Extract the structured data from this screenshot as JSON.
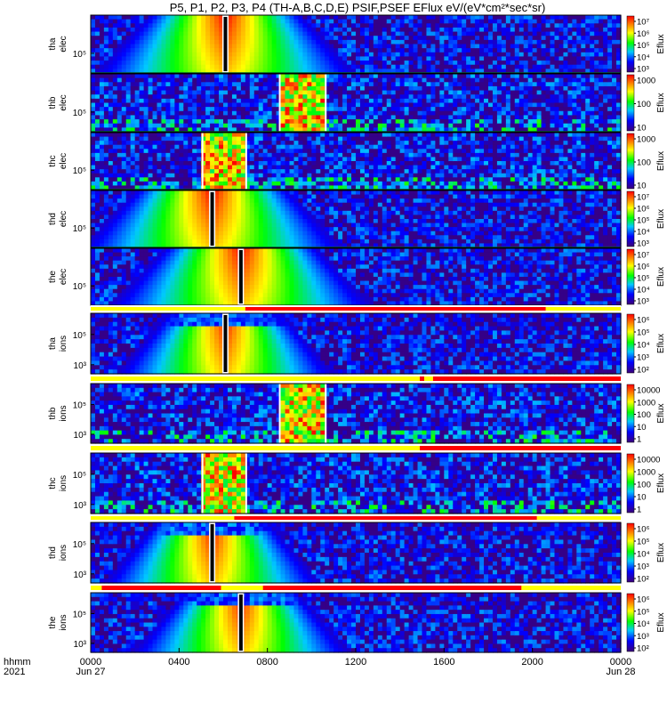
{
  "title": "P5, P1, P2, P3, P4 (TH-A,B,C,D,E) PSIF,PSEF EFlux eV/(eV*cm²*sec*sr)",
  "chart_data": {
    "type": "heatmap",
    "title": "P5, P1, P2, P3, P4 (TH-A,B,C,D,E) PSIF,PSEF EFlux eV/(eV*cm²*sec*sr)",
    "x_axis": {
      "row_label_1": "hhmm",
      "row_label_2": "2021",
      "ticks": [
        "0000",
        "0400",
        "0800",
        "1200",
        "1600",
        "2000",
        "0000"
      ],
      "tick_hours": [
        0,
        4,
        8,
        12,
        16,
        20,
        24
      ],
      "date_labels": [
        {
          "label": "Jun 27",
          "hour": 0
        },
        {
          "label": "Jun 28",
          "hour": 24
        }
      ],
      "range_hours": [
        0,
        24
      ]
    },
    "colorbar_label": "Eflux",
    "panels": [
      {
        "label_1": "tha",
        "label_2": "elec",
        "ytick": "10⁵",
        "cbar_ticks": [
          "10³",
          "10⁴",
          "10⁵",
          "10⁶",
          "10⁷"
        ],
        "style": "electron",
        "gap_hour": 6.1
      },
      {
        "label_1": "thb",
        "label_2": "elec",
        "ytick": "10⁵",
        "cbar_ticks": [
          "10",
          "100",
          "1000"
        ],
        "style": "noisy",
        "block_hours": [
          8.6,
          10.6
        ]
      },
      {
        "label_1": "thc",
        "label_2": "elec",
        "ytick": "10⁵",
        "cbar_ticks": [
          "10",
          "100",
          "1000"
        ],
        "style": "noisy",
        "block_hours": [
          5.1,
          7.0
        ]
      },
      {
        "label_1": "thd",
        "label_2": "elec",
        "ytick": "10⁵",
        "cbar_ticks": [
          "10³",
          "10⁴",
          "10⁵",
          "10⁶",
          "10⁷"
        ],
        "style": "electron",
        "gap_hour": 5.5
      },
      {
        "label_1": "the",
        "label_2": "elec",
        "ytick": "10⁵",
        "cbar_ticks": [
          "10³",
          "10⁴",
          "10⁵",
          "10⁶",
          "10⁷"
        ],
        "style": "electron",
        "gap_hour": 6.8
      },
      {
        "label_1": "tha",
        "label_2": "ions",
        "ytick_top": "10⁵",
        "ytick_bottom": "10³",
        "cbar_ticks": [
          "10²",
          "10³",
          "10⁴",
          "10⁵",
          "10⁶"
        ],
        "style": "ion",
        "gap_hour": 6.1
      },
      {
        "label_1": "thb",
        "label_2": "ions",
        "ytick_top": "10⁵",
        "ytick_bottom": "10³",
        "cbar_ticks": [
          "1",
          "10",
          "100",
          "1000",
          "10000"
        ],
        "style": "noisy",
        "block_hours": [
          8.6,
          10.6
        ]
      },
      {
        "label_1": "thc",
        "label_2": "ions",
        "ytick_top": "10⁵",
        "ytick_bottom": "10³",
        "cbar_ticks": [
          "1",
          "10",
          "100",
          "1000",
          "10000"
        ],
        "style": "noisy",
        "block_hours": [
          5.1,
          7.0
        ]
      },
      {
        "label_1": "thd",
        "label_2": "ions",
        "ytick_top": "10⁵",
        "ytick_bottom": "10³",
        "cbar_ticks": [
          "10²",
          "10³",
          "10⁴",
          "10⁵",
          "10⁶"
        ],
        "style": "ion",
        "gap_hour": 5.5
      },
      {
        "label_1": "the",
        "label_2": "ions",
        "ytick_top": "10⁵",
        "ytick_bottom": "10³",
        "cbar_ticks": [
          "10²",
          "10³",
          "10⁴",
          "10⁵",
          "10⁶"
        ],
        "style": "ion",
        "gap_hour": 6.8
      }
    ],
    "mode_bars": [
      {
        "after_panel": 4,
        "red_hours": [
          [
            7.0,
            20.6
          ]
        ]
      },
      {
        "after_panel": 5,
        "red_hours": [
          [
            14.9,
            15.1
          ],
          [
            15.5,
            24.0
          ]
        ]
      },
      {
        "after_panel": 6,
        "red_hours": [
          [
            14.9,
            24.0
          ]
        ]
      },
      {
        "after_panel": 7,
        "red_hours": [
          [
            6.5,
            20.2
          ]
        ]
      },
      {
        "after_panel": 8,
        "red_hours": [
          [
            0.5,
            5.9
          ],
          [
            7.8,
            19.5
          ]
        ]
      }
    ],
    "colors": {
      "mode_bar_base": "#ffff00",
      "mode_bar_active": "#ff0000"
    }
  }
}
